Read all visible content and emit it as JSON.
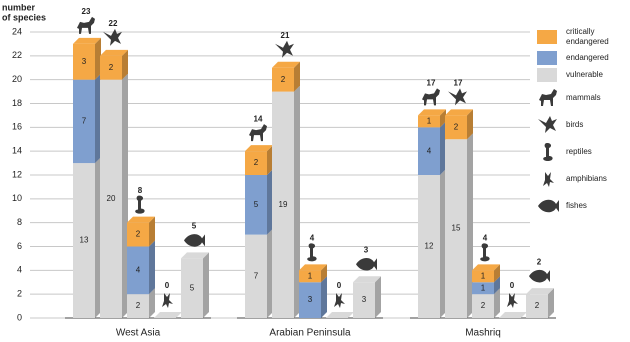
{
  "chart_data": {
    "type": "stacked-bar-3d",
    "y_label": [
      "number",
      "of species"
    ],
    "ylim": [
      0,
      24
    ],
    "yticks": [
      0,
      2,
      4,
      6,
      8,
      10,
      12,
      14,
      16,
      18,
      20,
      22,
      24
    ],
    "grid": true,
    "categories": [
      "mammals",
      "birds",
      "reptiles",
      "amphibians",
      "fishes"
    ],
    "groups": [
      {
        "name": "West Asia",
        "totals": [
          23,
          22,
          8,
          0,
          5
        ]
      },
      {
        "name": "Arabian Peninsula",
        "totals": [
          14,
          21,
          4,
          0,
          3
        ]
      },
      {
        "name": "Mashriq",
        "totals": [
          17,
          17,
          4,
          0,
          2
        ]
      }
    ],
    "series": [
      {
        "name": "vulnerable",
        "color": "#d9d9d9",
        "values": [
          [
            13,
            20,
            2,
            0,
            5
          ],
          [
            7,
            19,
            0,
            0,
            3
          ],
          [
            12,
            15,
            2,
            0,
            2
          ]
        ]
      },
      {
        "name": "endangered",
        "color": "#7f9fcf",
        "values": [
          [
            7,
            0,
            4,
            0,
            0
          ],
          [
            5,
            0,
            3,
            0,
            0
          ],
          [
            4,
            0,
            1,
            0,
            0
          ]
        ]
      },
      {
        "name": "critically endangered",
        "color": "#f5a845",
        "values": [
          [
            3,
            2,
            2,
            0,
            0
          ],
          [
            2,
            2,
            1,
            0,
            0
          ],
          [
            1,
            2,
            1,
            0,
            0
          ]
        ]
      }
    ]
  }
}
